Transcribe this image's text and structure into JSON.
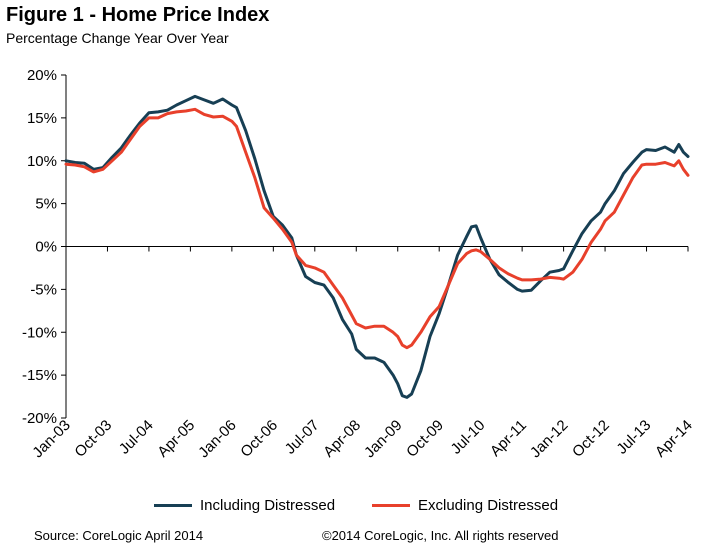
{
  "header": {
    "title": "Figure 1 - Home Price Index",
    "subtitle": "Percentage Change Year Over Year"
  },
  "footer": {
    "source": "Source: CoreLogic  April 2014",
    "copyright": "©2014 CoreLogic, Inc. All rights reserved"
  },
  "chart_data": {
    "type": "line",
    "title": "Figure 1 - Home Price Index",
    "subtitle": "Percentage Change Year Over Year",
    "xlabel": "",
    "ylabel": "",
    "ylim": [
      -20,
      20
    ],
    "y_ticks": [
      "20%",
      "15%",
      "10%",
      "5%",
      "0%",
      "-5%",
      "-10%",
      "-15%",
      "-20%"
    ],
    "x_ticks": [
      "Jan-03",
      "Oct-03",
      "Jul-04",
      "Apr-05",
      "Jan-06",
      "Oct-06",
      "Jul-07",
      "Apr-08",
      "Jan-09",
      "Oct-09",
      "Jul-10",
      "Apr-11",
      "Jan-12",
      "Oct-12",
      "Jul-13",
      "Apr-14"
    ],
    "x_start": "Jan-03",
    "x_end": "Apr-14",
    "grid": false,
    "legend_position": "bottom",
    "series": [
      {
        "name": "Including Distressed",
        "color": "#173f54",
        "points": [
          [
            "Jan-03",
            10.0
          ],
          [
            "Mar-03",
            9.8
          ],
          [
            "May-03",
            9.7
          ],
          [
            "Jul-03",
            9.0
          ],
          [
            "Sep-03",
            9.2
          ],
          [
            "Nov-03",
            10.4
          ],
          [
            "Jan-04",
            11.5
          ],
          [
            "Mar-04",
            13.0
          ],
          [
            "May-04",
            14.4
          ],
          [
            "Jul-04",
            15.6
          ],
          [
            "Sep-04",
            15.7
          ],
          [
            "Nov-04",
            15.9
          ],
          [
            "Jan-05",
            16.5
          ],
          [
            "Mar-05",
            17.0
          ],
          [
            "May-05",
            17.5
          ],
          [
            "Jul-05",
            17.1
          ],
          [
            "Sep-05",
            16.7
          ],
          [
            "Nov-05",
            17.2
          ],
          [
            "Jan-06",
            16.5
          ],
          [
            "Feb-06",
            16.2
          ],
          [
            "Apr-06",
            13.5
          ],
          [
            "Jun-06",
            10.2
          ],
          [
            "Aug-06",
            6.5
          ],
          [
            "Oct-06",
            3.5
          ],
          [
            "Dec-06",
            2.5
          ],
          [
            "Feb-07",
            1.0
          ],
          [
            "Mar-07",
            -1.0
          ],
          [
            "May-07",
            -3.5
          ],
          [
            "Jul-07",
            -4.2
          ],
          [
            "Sep-07",
            -4.5
          ],
          [
            "Nov-07",
            -6.0
          ],
          [
            "Jan-08",
            -8.5
          ],
          [
            "Mar-08",
            -10.2
          ],
          [
            "Apr-08",
            -12.0
          ],
          [
            "Jun-08",
            -13.0
          ],
          [
            "Aug-08",
            -13.0
          ],
          [
            "Oct-08",
            -13.5
          ],
          [
            "Dec-08",
            -15.0
          ],
          [
            "Jan-09",
            -16.0
          ],
          [
            "Feb-09",
            -17.4
          ],
          [
            "Mar-09",
            -17.6
          ],
          [
            "Apr-09",
            -17.2
          ],
          [
            "Jun-09",
            -14.5
          ],
          [
            "Aug-09",
            -10.5
          ],
          [
            "Oct-09",
            -7.8
          ],
          [
            "Dec-09",
            -4.5
          ],
          [
            "Feb-10",
            -1.0
          ],
          [
            "Apr-10",
            1.2
          ],
          [
            "May-10",
            2.3
          ],
          [
            "Jun-10",
            2.4
          ],
          [
            "Jul-10",
            1.0
          ],
          [
            "Sep-10",
            -1.5
          ],
          [
            "Nov-10",
            -3.3
          ],
          [
            "Jan-11",
            -4.2
          ],
          [
            "Mar-11",
            -5.0
          ],
          [
            "Apr-11",
            -5.2
          ],
          [
            "Jun-11",
            -5.1
          ],
          [
            "Aug-11",
            -4.0
          ],
          [
            "Oct-11",
            -3.0
          ],
          [
            "Dec-11",
            -2.8
          ],
          [
            "Jan-12",
            -2.6
          ],
          [
            "Mar-12",
            -0.5
          ],
          [
            "May-12",
            1.5
          ],
          [
            "Jul-12",
            3.0
          ],
          [
            "Sep-12",
            4.0
          ],
          [
            "Oct-12",
            5.0
          ],
          [
            "Dec-12",
            6.5
          ],
          [
            "Feb-13",
            8.5
          ],
          [
            "Apr-13",
            9.8
          ],
          [
            "Jun-13",
            11.0
          ],
          [
            "Jul-13",
            11.3
          ],
          [
            "Sep-13",
            11.2
          ],
          [
            "Nov-13",
            11.6
          ],
          [
            "Jan-14",
            11.0
          ],
          [
            "Feb-14",
            11.9
          ],
          [
            "Mar-14",
            11.0
          ],
          [
            "Apr-14",
            10.5
          ]
        ]
      },
      {
        "name": "Excluding Distressed",
        "color": "#e8402b",
        "points": [
          [
            "Jan-03",
            9.6
          ],
          [
            "Mar-03",
            9.5
          ],
          [
            "May-03",
            9.3
          ],
          [
            "Jul-03",
            8.7
          ],
          [
            "Sep-03",
            9.0
          ],
          [
            "Nov-03",
            10.0
          ],
          [
            "Jan-04",
            11.0
          ],
          [
            "Mar-04",
            12.5
          ],
          [
            "May-04",
            14.0
          ],
          [
            "Jul-04",
            15.0
          ],
          [
            "Sep-04",
            15.0
          ],
          [
            "Nov-04",
            15.5
          ],
          [
            "Jan-05",
            15.7
          ],
          [
            "Mar-05",
            15.8
          ],
          [
            "May-05",
            16.0
          ],
          [
            "Jul-05",
            15.4
          ],
          [
            "Sep-05",
            15.1
          ],
          [
            "Nov-05",
            15.2
          ],
          [
            "Jan-06",
            14.6
          ],
          [
            "Feb-06",
            14.0
          ],
          [
            "Apr-06",
            11.0
          ],
          [
            "Jun-06",
            8.0
          ],
          [
            "Aug-06",
            4.5
          ],
          [
            "Oct-06",
            3.3
          ],
          [
            "Dec-06",
            2.0
          ],
          [
            "Feb-07",
            0.5
          ],
          [
            "Mar-07",
            -1.0
          ],
          [
            "May-07",
            -2.2
          ],
          [
            "Jul-07",
            -2.5
          ],
          [
            "Sep-07",
            -3.0
          ],
          [
            "Nov-07",
            -4.5
          ],
          [
            "Jan-08",
            -6.0
          ],
          [
            "Mar-08",
            -8.0
          ],
          [
            "Apr-08",
            -9.0
          ],
          [
            "Jun-08",
            -9.5
          ],
          [
            "Aug-08",
            -9.3
          ],
          [
            "Oct-08",
            -9.3
          ],
          [
            "Dec-08",
            -10.0
          ],
          [
            "Jan-09",
            -10.5
          ],
          [
            "Feb-09",
            -11.5
          ],
          [
            "Mar-09",
            -11.8
          ],
          [
            "Apr-09",
            -11.5
          ],
          [
            "Jun-09",
            -10.0
          ],
          [
            "Aug-09",
            -8.2
          ],
          [
            "Oct-09",
            -7.0
          ],
          [
            "Dec-09",
            -4.5
          ],
          [
            "Feb-10",
            -2.0
          ],
          [
            "Apr-10",
            -0.8
          ],
          [
            "May-10",
            -0.5
          ],
          [
            "Jun-10",
            -0.4
          ],
          [
            "Jul-10",
            -0.6
          ],
          [
            "Sep-10",
            -1.5
          ],
          [
            "Nov-10",
            -2.5
          ],
          [
            "Jan-11",
            -3.2
          ],
          [
            "Mar-11",
            -3.7
          ],
          [
            "Apr-11",
            -3.9
          ],
          [
            "Jun-11",
            -3.9
          ],
          [
            "Aug-11",
            -3.8
          ],
          [
            "Oct-11",
            -3.6
          ],
          [
            "Dec-11",
            -3.7
          ],
          [
            "Jan-12",
            -3.8
          ],
          [
            "Mar-12",
            -3.0
          ],
          [
            "May-12",
            -1.5
          ],
          [
            "Jul-12",
            0.5
          ],
          [
            "Sep-12",
            2.0
          ],
          [
            "Oct-12",
            3.0
          ],
          [
            "Dec-12",
            4.0
          ],
          [
            "Feb-13",
            6.0
          ],
          [
            "Apr-13",
            8.0
          ],
          [
            "Jun-13",
            9.5
          ],
          [
            "Jul-13",
            9.6
          ],
          [
            "Sep-13",
            9.6
          ],
          [
            "Nov-13",
            9.8
          ],
          [
            "Jan-14",
            9.4
          ],
          [
            "Feb-14",
            10.0
          ],
          [
            "Mar-14",
            9.0
          ],
          [
            "Apr-14",
            8.3
          ]
        ]
      }
    ]
  }
}
